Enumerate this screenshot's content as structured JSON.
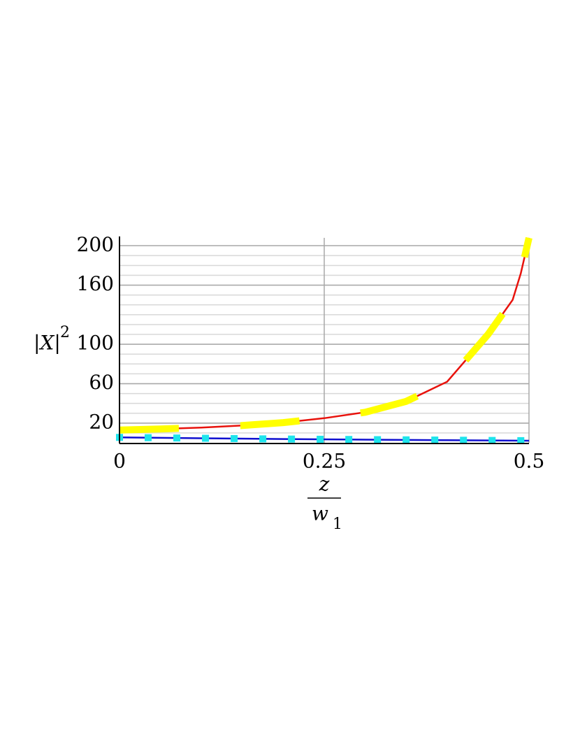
{
  "chart_data": {
    "type": "line",
    "y_label": {
      "base": "|X|",
      "exponent": "2"
    },
    "x_label": {
      "numerator": "z",
      "denominator": "w",
      "subscript": "1"
    },
    "xlim": [
      0,
      0.5
    ],
    "xticks": [
      0,
      0.25,
      0.5
    ],
    "ylim": [
      0,
      208
    ],
    "yticks": [
      20,
      60,
      100,
      160,
      200
    ],
    "yminor_ticks": [
      10,
      20,
      30,
      40,
      50,
      60,
      70,
      80,
      90,
      100,
      110,
      120,
      130,
      140,
      150,
      160,
      170,
      180,
      190,
      200
    ],
    "grid": true,
    "series": [
      {
        "color": "#e8120c",
        "style": "line",
        "x": [
          0,
          0.05,
          0.1,
          0.15,
          0.2,
          0.25,
          0.3,
          0.35,
          0.4,
          0.45,
          0.468,
          0.48,
          0.49,
          0.5
        ],
        "values": [
          13,
          14,
          15.5,
          17.5,
          20.5,
          25,
          31,
          42,
          62,
          110,
          131,
          145,
          172,
          208
        ]
      },
      {
        "color": "#ffff00",
        "style": "dashed",
        "x": [
          0,
          0.05,
          0.1,
          0.15,
          0.2,
          0.25,
          0.3,
          0.35,
          0.4,
          0.45,
          0.468,
          0.48,
          0.49,
          0.5
        ],
        "values": [
          13,
          14,
          15.5,
          17.5,
          20.5,
          25,
          31,
          42,
          62,
          110,
          131,
          145,
          172,
          208
        ]
      },
      {
        "color": "#1010d0",
        "style": "line",
        "x": [
          0,
          0.1,
          0.2,
          0.3,
          0.4,
          0.5
        ],
        "values": [
          5.5,
          4.6,
          3.8,
          3.2,
          2.6,
          2.1
        ]
      },
      {
        "color": "#1ee4ec",
        "style": "markers",
        "x": [
          0,
          0.035,
          0.07,
          0.105,
          0.14,
          0.175,
          0.21,
          0.245,
          0.28,
          0.315,
          0.35,
          0.385,
          0.42,
          0.455,
          0.49
        ],
        "values": [
          5.5,
          5.2,
          4.9,
          4.6,
          4.3,
          4.0,
          3.8,
          3.6,
          3.4,
          3.2,
          3.0,
          2.8,
          2.6,
          2.4,
          2.2
        ]
      }
    ]
  }
}
